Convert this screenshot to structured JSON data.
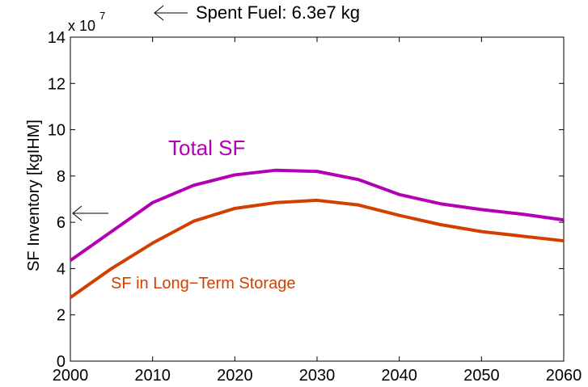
{
  "chart_data": {
    "type": "line",
    "y_label": "SF Inventory [kgIHM]",
    "y_multiplier": {
      "base": "x 10",
      "exponent": "7"
    },
    "annotation_top": "Spent Fuel: 6.3e7 kg",
    "x": [
      2000,
      2005,
      2010,
      2015,
      2020,
      2025,
      2030,
      2035,
      2040,
      2045,
      2050,
      2055,
      2060
    ],
    "series": [
      {
        "name": "Total SF",
        "color": "#b400b4",
        "values": [
          4.35,
          5.6,
          6.85,
          7.6,
          8.05,
          8.25,
          8.2,
          7.85,
          7.2,
          6.8,
          6.55,
          6.35,
          6.1
        ]
      },
      {
        "name": "SF in Long−Term Storage",
        "color": "#d24000",
        "values": [
          2.75,
          4.0,
          5.1,
          6.05,
          6.6,
          6.85,
          6.95,
          6.75,
          6.3,
          5.9,
          5.6,
          5.4,
          5.2
        ]
      }
    ],
    "xlim": [
      2000,
      2060
    ],
    "xticks": [
      2000,
      2010,
      2020,
      2030,
      2040,
      2050,
      2060
    ],
    "ylim": [
      0,
      14
    ],
    "yticks": [
      0,
      2,
      4,
      6,
      8,
      10,
      12,
      14
    ],
    "grid": false
  }
}
